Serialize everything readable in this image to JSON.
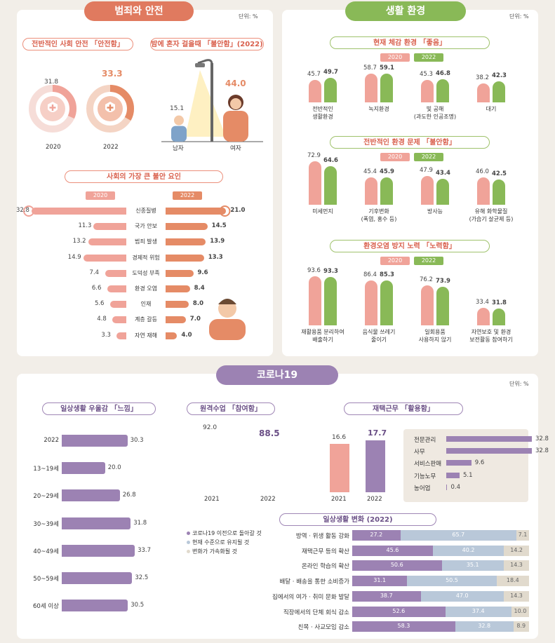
{
  "colors": {
    "pink": "#f0a399",
    "orange": "#e58b66",
    "green": "#89b957",
    "purple": "#9c82b3",
    "lightblue": "#b9c8d9",
    "beige": "#e1dacd"
  },
  "safety": {
    "ribbon": "범죄와 안전",
    "unit": "단위: %",
    "overall": {
      "title": "전반적인 사회 안전 「안전함」",
      "years": [
        "2020",
        "2022"
      ],
      "values": [
        31.8,
        33.3
      ]
    },
    "night": {
      "title": "밤에 혼자 걸을때 「불안함」(2022)",
      "labels": [
        "남자",
        "여자"
      ],
      "values": [
        15.1,
        44.0
      ],
      "value_labels": [
        "15.1",
        "44.0"
      ]
    },
    "anxiety": {
      "title": "사회의 가장 큰 불안 요인",
      "year_left": "2020",
      "year_right": "2022",
      "categories": [
        "신종질병",
        "국가 안보",
        "범죄 발생",
        "경제적 위험",
        "도덕성 부족",
        "환경 오염",
        "인재",
        "계층 갈등",
        "자연 재해"
      ],
      "values_2020": [
        32.8,
        11.3,
        13.2,
        14.9,
        7.4,
        6.6,
        5.6,
        4.8,
        3.3
      ],
      "values_2022": [
        21.0,
        14.5,
        13.9,
        13.3,
        9.6,
        8.4,
        8.0,
        7.0,
        4.0
      ],
      "labels_2022": [
        "21.0",
        "14.5",
        "13.9",
        "13.3",
        "9.6",
        "8.4",
        "8.0",
        "7.0",
        "4.0"
      ]
    }
  },
  "environment": {
    "ribbon": "생활 환경",
    "unit": "단위: %",
    "year_left": "2020",
    "year_right": "2022",
    "good": {
      "title": "현재 체감 환경 「좋음」",
      "categories": [
        "전반적인\n생활환경",
        "녹지환경",
        "빛 공해\n(과도한 인공조명)",
        "대기"
      ],
      "v2020": [
        45.7,
        58.7,
        45.3,
        38.2
      ],
      "v2022": [
        49.7,
        59.1,
        46.8,
        42.3
      ]
    },
    "anxious": {
      "title": "전반적인 환경 문제 「불안함」",
      "categories": [
        "미세먼지",
        "기후변화\n(폭염, 홍수 등)",
        "방사능",
        "유해 화학물질\n(가습기 살균제 등)"
      ],
      "v2020": [
        72.9,
        45.4,
        47.9,
        46.0
      ],
      "v2022": [
        64.6,
        45.9,
        43.4,
        42.5
      ],
      "labels_2020": [
        "72.9",
        "45.4",
        "47.9",
        "46.0"
      ]
    },
    "effort": {
      "title": "환경오염 방지 노력 「노력함」",
      "categories": [
        "재활용품 분리하여\n배출하기",
        "음식물 쓰레기\n줄이기",
        "일회용품\n사용하지 않기",
        "자연보호 및 환경\n보전활동 참여하기"
      ],
      "v2020": [
        93.6,
        86.4,
        76.2,
        33.4
      ],
      "v2022": [
        93.3,
        85.3,
        73.9,
        31.8
      ]
    }
  },
  "covid": {
    "ribbon": "코로나19",
    "unit": "단위: %",
    "depression": {
      "title": "일상생활 우울감 「느낌」",
      "categories": [
        "2022",
        "13~19세",
        "20~29세",
        "30~39세",
        "40~49세",
        "50~59세",
        "60세 이상"
      ],
      "values": [
        30.3,
        20.0,
        26.8,
        31.8,
        33.7,
        32.5,
        30.5
      ],
      "labels": [
        "30.3",
        "20.0",
        "26.8",
        "31.8",
        "33.7",
        "32.5",
        "30.5"
      ]
    },
    "remote_class": {
      "title": "원격수업 「참여함」",
      "years": [
        "2021",
        "2022"
      ],
      "values": [
        92.0,
        88.5
      ],
      "labels": [
        "92.0",
        "88.5"
      ]
    },
    "telework": {
      "title": "재택근무 「활용함」",
      "years": [
        "2021",
        "2022"
      ],
      "values": [
        16.6,
        17.7
      ],
      "jobs": [
        "전문관리",
        "사무",
        "서비스판매",
        "기능노무",
        "농어업"
      ],
      "job_values": [
        32.8,
        32.8,
        9.6,
        5.1,
        0.4
      ]
    },
    "daily_change": {
      "title": "일상생활 변화 (2022)",
      "legend": [
        "코로나19 이전으로 돌아갈 것",
        "현재 수준으로 유지될 것",
        "변화가 가속화될 것"
      ],
      "categories": [
        "방역 · 위생 활동 강화",
        "재택근무 등의 확산",
        "온라인 학습의 확산",
        "배달 · 배송을 통한 소비증가",
        "집에서의 여가 · 취미 문화 발달",
        "직장에서의 단체 회식 감소",
        "친목 · 사교모임 감소"
      ],
      "back": [
        27.2,
        45.6,
        50.6,
        31.1,
        38.7,
        52.6,
        58.3
      ],
      "keep": [
        65.7,
        40.2,
        35.1,
        50.5,
        47.0,
        37.4,
        32.8
      ],
      "accel": [
        7.1,
        14.2,
        14.3,
        18.4,
        14.3,
        10.0,
        8.9
      ]
    }
  }
}
